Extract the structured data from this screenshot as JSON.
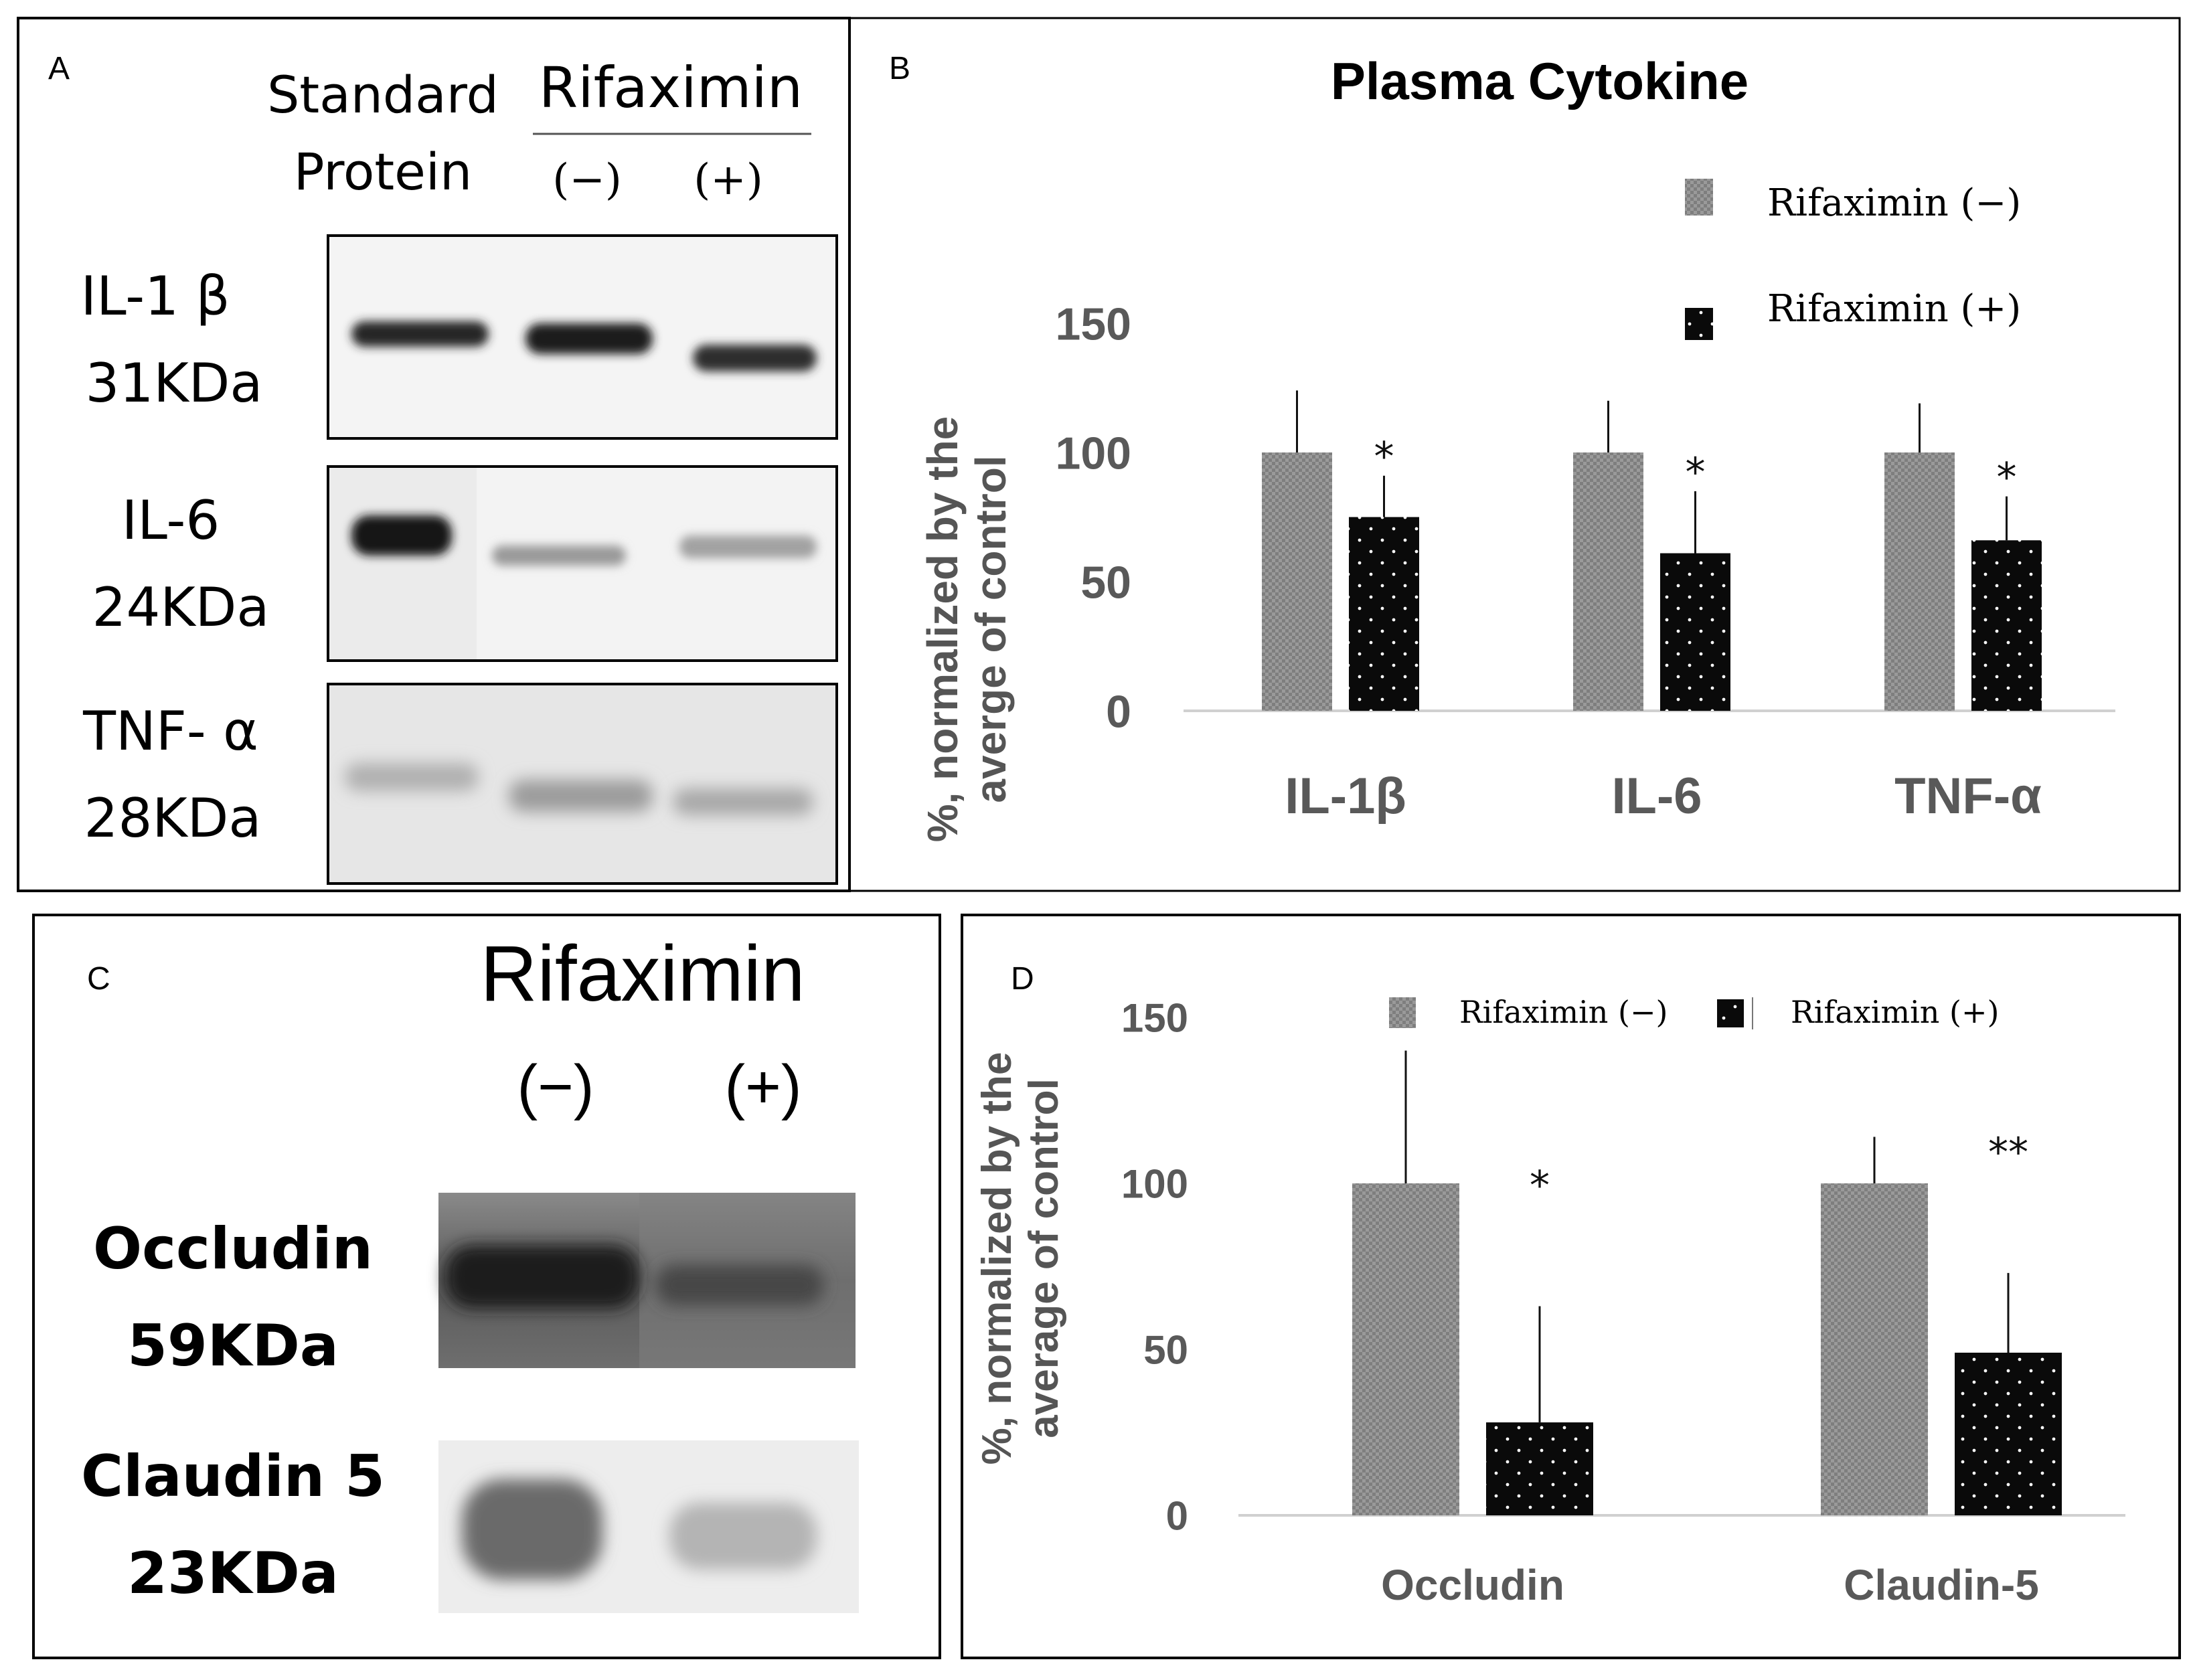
{
  "panel_a": {
    "letter": "A",
    "header_standard_1": "Standard",
    "header_standard_2": "Protein",
    "header_rifaximin": "Rifaximin",
    "lane_minus": "(−)",
    "lane_plus": "(+)",
    "rows": [
      {
        "name": "IL-1 β",
        "kda": "31KDa"
      },
      {
        "name": "IL-6",
        "kda": "24KDa"
      },
      {
        "name": "TNF- α",
        "kda": "28KDa"
      }
    ]
  },
  "panel_c": {
    "letter": "C",
    "header_rifaximin": "Rifaximin",
    "lane_minus": "(−)",
    "lane_plus": "(+)",
    "rows": [
      {
        "name": "Occludin",
        "kda": "59KDa"
      },
      {
        "name": "Claudin 5",
        "kda": "23KDa"
      }
    ]
  },
  "chart_data": [
    {
      "panel": "B",
      "type": "bar",
      "title": "Plasma Cytokine",
      "ylabel_line1": "%, normalized by the",
      "ylabel_line2": "averge of control",
      "xlabel": "",
      "categories": [
        "IL-1β",
        "IL-6",
        "TNF-α"
      ],
      "ylim": [
        0,
        150
      ],
      "yticks": [
        0,
        50,
        100,
        150
      ],
      "grid": false,
      "legend_position": "top-right",
      "series": [
        {
          "name": "Rifaximin (−)",
          "values": [
            100,
            100,
            100
          ],
          "errors": [
            24,
            20,
            19
          ],
          "color": "#999999",
          "pattern": "checker"
        },
        {
          "name": "Rifaximin (+)",
          "values": [
            75,
            61,
            66
          ],
          "errors": [
            16,
            24,
            17
          ],
          "color": "#0a0a0a",
          "pattern": "dots"
        }
      ],
      "annotations": [
        "*",
        "*",
        "*"
      ]
    },
    {
      "panel": "D",
      "type": "bar",
      "title": "",
      "ylabel_line1": "%, normalized by the",
      "ylabel_line2": "average of control",
      "xlabel": "",
      "categories": [
        "Occludin",
        "Claudin-5"
      ],
      "ylim": [
        0,
        150
      ],
      "yticks": [
        0,
        50,
        100,
        150
      ],
      "grid": false,
      "legend_position": "top",
      "series": [
        {
          "name": "Rifaximin (−)",
          "values": [
            100,
            100
          ],
          "errors": [
            40,
            14
          ],
          "color": "#999999",
          "pattern": "checker"
        },
        {
          "name": "Rifaximin (+)",
          "values": [
            28,
            49
          ],
          "errors": [
            35,
            24
          ],
          "color": "#0a0a0a",
          "pattern": "dots"
        }
      ],
      "annotations": [
        "*",
        "**"
      ]
    }
  ]
}
